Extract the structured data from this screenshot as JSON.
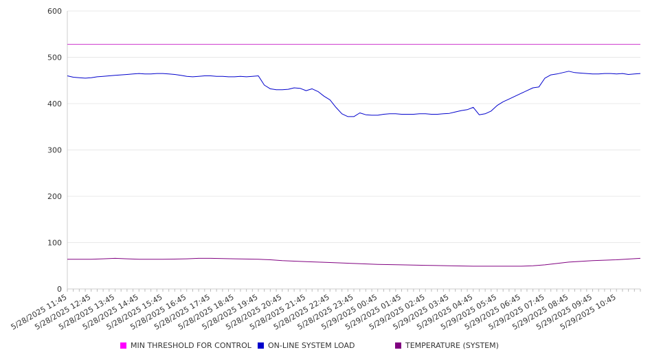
{
  "chart_data": {
    "type": "line",
    "title": "",
    "xlabel": "",
    "ylabel": "",
    "ylim": [
      0,
      600
    ],
    "yticks": [
      "0",
      "100",
      "200",
      "300",
      "400",
      "500",
      "600"
    ],
    "grid": "horizontal",
    "legend_position": "bottom",
    "categories": [
      "5/28/2025 11:45",
      "5/28/2025 12:45",
      "5/28/2025 13:45",
      "5/28/2025 14:45",
      "5/28/2025 15:45",
      "5/28/2025 16:45",
      "5/28/2025 17:45",
      "5/28/2025 18:45",
      "5/28/2025 19:45",
      "5/28/2025 20:45",
      "5/28/2025 21:45",
      "5/28/2025 22:45",
      "5/28/2025 23:45",
      "5/29/2025 00:45",
      "5/29/2025 01:45",
      "5/29/2025 02:45",
      "5/29/2025 03:45",
      "5/29/2025 04:45",
      "5/29/2025 05:45",
      "5/29/2025 06:45",
      "5/29/2025 07:45",
      "5/29/2025 08:45",
      "5/29/2025 09:45",
      "5/29/2025 10:45"
    ],
    "x_end": 24,
    "series": [
      {
        "name": "MIN THRESHOLD FOR CONTROL",
        "color": "#cc33cc",
        "x": [
          0,
          24
        ],
        "values": [
          528,
          528
        ]
      },
      {
        "name": "ON-LINE SYSTEM LOAD",
        "color": "#0000cc",
        "x": [
          0,
          0.25,
          0.5,
          0.75,
          1.0,
          1.25,
          1.5,
          1.75,
          2.0,
          2.25,
          2.5,
          2.75,
          3.0,
          3.25,
          3.5,
          3.75,
          4.0,
          4.25,
          4.5,
          4.75,
          5.0,
          5.25,
          5.5,
          5.75,
          6.0,
          6.25,
          6.5,
          6.75,
          7.0,
          7.25,
          7.5,
          7.75,
          8.0,
          8.25,
          8.5,
          8.75,
          9.0,
          9.25,
          9.5,
          9.75,
          10.0,
          10.25,
          10.5,
          10.75,
          11.0,
          11.25,
          11.5,
          11.75,
          12.0,
          12.25,
          12.5,
          12.75,
          13.0,
          13.25,
          13.5,
          13.75,
          14.0,
          14.25,
          14.5,
          14.75,
          15.0,
          15.25,
          15.5,
          15.75,
          16.0,
          16.25,
          16.5,
          16.75,
          17.0,
          17.25,
          17.5,
          17.75,
          18.0,
          18.25,
          18.5,
          18.75,
          19.0,
          19.25,
          19.5,
          19.75,
          20.0,
          20.25,
          20.5,
          20.75,
          21.0,
          21.25,
          21.5,
          21.75,
          22.0,
          22.25,
          22.5,
          22.75,
          23.0,
          23.25,
          23.5,
          23.75,
          24.0
        ],
        "values": [
          460,
          457,
          456,
          455,
          456,
          458,
          459,
          460,
          461,
          462,
          463,
          464,
          465,
          464,
          464,
          465,
          465,
          464,
          463,
          461,
          459,
          458,
          459,
          460,
          460,
          459,
          459,
          458,
          458,
          459,
          458,
          459,
          460,
          440,
          432,
          430,
          430,
          431,
          434,
          433,
          428,
          432,
          426,
          416,
          408,
          392,
          378,
          372,
          372,
          380,
          376,
          375,
          375,
          377,
          378,
          378,
          377,
          377,
          377,
          378,
          378,
          377,
          377,
          378,
          379,
          382,
          385,
          387,
          392,
          376,
          378,
          384,
          396,
          404,
          410,
          416,
          422,
          428,
          434,
          436,
          455,
          462,
          464,
          467,
          470,
          467,
          466,
          465,
          464,
          464,
          465,
          465,
          464,
          465,
          463,
          464,
          465
        ]
      },
      {
        "name": "TEMPERATURE (SYSTEM)",
        "color": "#800080",
        "x": [
          0,
          1,
          1.5,
          2,
          2.5,
          3,
          4,
          5,
          5.5,
          6,
          7,
          8,
          8.5,
          9,
          10,
          11,
          12,
          13,
          14,
          15,
          16,
          17,
          18,
          19,
          19.5,
          20,
          20.5,
          21,
          22,
          23,
          24
        ],
        "values": [
          64,
          64,
          65,
          66,
          65,
          64,
          64,
          65,
          66,
          66,
          65,
          64,
          63,
          61,
          59,
          57,
          55,
          53,
          52,
          51,
          50,
          49,
          49,
          49,
          50,
          52,
          55,
          58,
          61,
          63,
          66
        ]
      }
    ]
  }
}
